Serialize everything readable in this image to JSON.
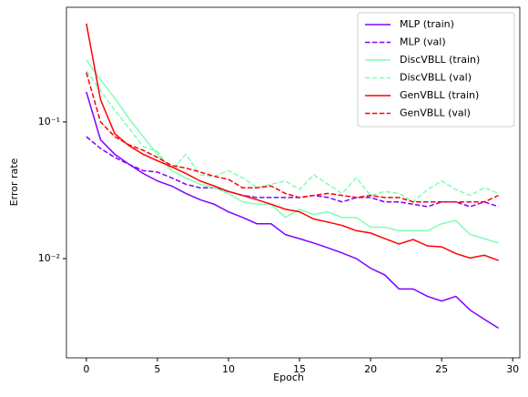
{
  "chart_data": {
    "type": "line",
    "xlabel": "Epoch",
    "ylabel": "Error rate",
    "yscale": "log",
    "legend": "upper right",
    "x": [
      0,
      1,
      2,
      3,
      4,
      5,
      6,
      7,
      8,
      9,
      10,
      11,
      12,
      13,
      14,
      15,
      16,
      17,
      18,
      19,
      20,
      21,
      22,
      23,
      24,
      25,
      26,
      27,
      28,
      29
    ],
    "xlim": [
      -1.4,
      30.5
    ],
    "xticks": [
      0,
      5,
      10,
      15,
      20,
      25,
      30
    ],
    "ylim": [
      0.00188,
      0.69
    ],
    "yticks": [
      {
        "value": 0.01,
        "label": "10⁻²"
      },
      {
        "value": 0.1,
        "label": "10⁻¹"
      }
    ],
    "series": [
      {
        "name": "MLP (train)",
        "color": "#8000ff",
        "linestyle": "solid",
        "values": [
          0.166,
          0.074,
          0.058,
          0.049,
          0.042,
          0.037,
          0.034,
          0.03,
          0.027,
          0.025,
          0.022,
          0.02,
          0.018,
          0.018,
          0.015,
          0.014,
          0.013,
          0.012,
          0.011,
          0.01,
          0.0085,
          0.0076,
          0.006,
          0.006,
          0.0053,
          0.0049,
          0.0053,
          0.0042,
          0.0036,
          0.0031
        ]
      },
      {
        "name": "MLP (val)",
        "color": "#8000ff",
        "linestyle": "dashed",
        "values": [
          0.078,
          0.064,
          0.055,
          0.049,
          0.044,
          0.043,
          0.039,
          0.035,
          0.033,
          0.033,
          0.031,
          0.029,
          0.028,
          0.028,
          0.028,
          0.028,
          0.029,
          0.028,
          0.026,
          0.028,
          0.028,
          0.026,
          0.026,
          0.025,
          0.024,
          0.026,
          0.026,
          0.024,
          0.026,
          0.024
        ]
      },
      {
        "name": "DiscVBLL (train)",
        "color": "#80ffb4",
        "linestyle": "solid",
        "values": [
          0.284,
          0.203,
          0.149,
          0.106,
          0.078,
          0.058,
          0.044,
          0.039,
          0.035,
          0.033,
          0.03,
          0.026,
          0.025,
          0.025,
          0.02,
          0.023,
          0.021,
          0.022,
          0.02,
          0.02,
          0.017,
          0.017,
          0.016,
          0.016,
          0.016,
          0.018,
          0.019,
          0.015,
          0.014,
          0.013
        ]
      },
      {
        "name": "DiscVBLL (val)",
        "color": "#80ffb4",
        "linestyle": "dashed",
        "values": [
          0.236,
          0.169,
          0.122,
          0.09,
          0.066,
          0.061,
          0.044,
          0.058,
          0.041,
          0.04,
          0.044,
          0.039,
          0.033,
          0.035,
          0.037,
          0.032,
          0.041,
          0.035,
          0.03,
          0.039,
          0.029,
          0.031,
          0.03,
          0.026,
          0.032,
          0.037,
          0.032,
          0.029,
          0.033,
          0.03
        ]
      },
      {
        "name": "GenVBLL (train)",
        "color": "#ff0000",
        "linestyle": "solid",
        "values": [
          0.525,
          0.145,
          0.082,
          0.067,
          0.058,
          0.052,
          0.047,
          0.042,
          0.037,
          0.034,
          0.031,
          0.029,
          0.027,
          0.025,
          0.023,
          0.022,
          0.0195,
          0.0185,
          0.0175,
          0.016,
          0.0154,
          0.014,
          0.0128,
          0.0138,
          0.0124,
          0.0122,
          0.0109,
          0.0101,
          0.0106,
          0.0097
        ]
      },
      {
        "name": "GenVBLL (val)",
        "color": "#ff0000",
        "linestyle": "dashed",
        "values": [
          0.23,
          0.1,
          0.078,
          0.068,
          0.062,
          0.055,
          0.048,
          0.046,
          0.043,
          0.04,
          0.038,
          0.033,
          0.033,
          0.034,
          0.03,
          0.028,
          0.029,
          0.03,
          0.029,
          0.028,
          0.029,
          0.028,
          0.028,
          0.026,
          0.026,
          0.026,
          0.026,
          0.026,
          0.026,
          0.029
        ]
      }
    ]
  }
}
